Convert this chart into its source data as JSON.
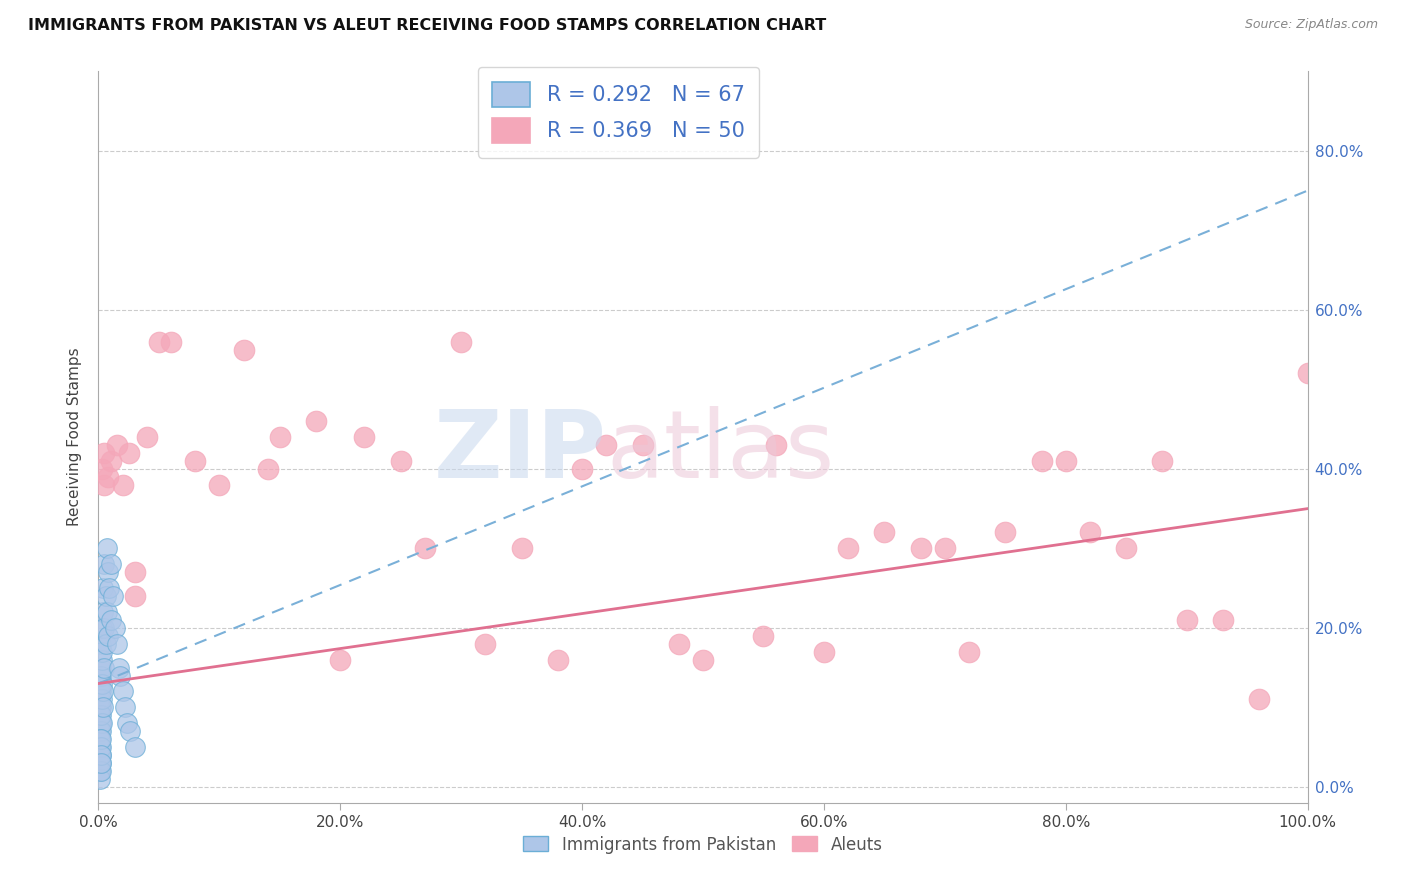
{
  "title": "IMMIGRANTS FROM PAKISTAN VS ALEUT RECEIVING FOOD STAMPS CORRELATION CHART",
  "source": "Source: ZipAtlas.com",
  "ylabel": "Receiving Food Stamps",
  "xlim": [
    0.0,
    1.0
  ],
  "ylim": [
    -0.02,
    0.9
  ],
  "xticks": [
    0.0,
    0.2,
    0.4,
    0.6,
    0.8,
    1.0
  ],
  "xticklabels": [
    "0.0%",
    "20.0%",
    "40.0%",
    "60.0%",
    "80.0%",
    "100.0%"
  ],
  "yticks": [
    0.0,
    0.2,
    0.4,
    0.6,
    0.8
  ],
  "yticklabels": [
    "0.0%",
    "20.0%",
    "40.0%",
    "60.0%",
    "80.0%"
  ],
  "legend_label1": "Immigrants from Pakistan",
  "legend_label2": "Aleuts",
  "color_pakistan_fill": "#aec6e8",
  "color_pakistan_edge": "#6baed6",
  "color_aleut_fill": "#f4a7b9",
  "color_aleut_edge": "#e07090",
  "color_pak_line": "#7ab0d8",
  "color_aleut_line": "#e07090",
  "background_color": "#ffffff",
  "pakistan_x": [
    0.001,
    0.001,
    0.001,
    0.001,
    0.001,
    0.001,
    0.001,
    0.001,
    0.001,
    0.001,
    0.002,
    0.002,
    0.002,
    0.002,
    0.002,
    0.002,
    0.002,
    0.002,
    0.003,
    0.003,
    0.003,
    0.003,
    0.003,
    0.003,
    0.004,
    0.004,
    0.004,
    0.004,
    0.005,
    0.005,
    0.005,
    0.006,
    0.006,
    0.007,
    0.007,
    0.008,
    0.008,
    0.009,
    0.01,
    0.01,
    0.012,
    0.014,
    0.015,
    0.017,
    0.018,
    0.02,
    0.022,
    0.024,
    0.026,
    0.03,
    0.001,
    0.001,
    0.001,
    0.001,
    0.001,
    0.001,
    0.001,
    0.001,
    0.001,
    0.001,
    0.002,
    0.002,
    0.002,
    0.002,
    0.002,
    0.002,
    0.002
  ],
  "pakistan_y": [
    0.1,
    0.12,
    0.08,
    0.14,
    0.09,
    0.07,
    0.11,
    0.06,
    0.13,
    0.05,
    0.15,
    0.1,
    0.12,
    0.08,
    0.14,
    0.07,
    0.18,
    0.09,
    0.16,
    0.11,
    0.2,
    0.08,
    0.13,
    0.17,
    0.22,
    0.12,
    0.25,
    0.1,
    0.28,
    0.15,
    0.2,
    0.24,
    0.18,
    0.3,
    0.22,
    0.27,
    0.19,
    0.25,
    0.28,
    0.21,
    0.24,
    0.2,
    0.18,
    0.15,
    0.14,
    0.12,
    0.1,
    0.08,
    0.07,
    0.05,
    0.04,
    0.03,
    0.02,
    0.05,
    0.06,
    0.04,
    0.03,
    0.02,
    0.01,
    0.03,
    0.04,
    0.05,
    0.03,
    0.02,
    0.06,
    0.04,
    0.03
  ],
  "aleut_x": [
    0.003,
    0.005,
    0.005,
    0.008,
    0.01,
    0.015,
    0.02,
    0.025,
    0.03,
    0.03,
    0.04,
    0.05,
    0.06,
    0.08,
    0.1,
    0.12,
    0.14,
    0.15,
    0.18,
    0.2,
    0.22,
    0.25,
    0.27,
    0.3,
    0.32,
    0.35,
    0.38,
    0.4,
    0.42,
    0.45,
    0.48,
    0.5,
    0.55,
    0.56,
    0.6,
    0.62,
    0.65,
    0.68,
    0.7,
    0.72,
    0.75,
    0.78,
    0.8,
    0.82,
    0.85,
    0.88,
    0.9,
    0.93,
    0.96,
    1.0
  ],
  "aleut_y": [
    0.4,
    0.38,
    0.42,
    0.39,
    0.41,
    0.43,
    0.38,
    0.42,
    0.27,
    0.24,
    0.44,
    0.56,
    0.56,
    0.41,
    0.38,
    0.55,
    0.4,
    0.44,
    0.46,
    0.16,
    0.44,
    0.41,
    0.3,
    0.56,
    0.18,
    0.3,
    0.16,
    0.4,
    0.43,
    0.43,
    0.18,
    0.16,
    0.19,
    0.43,
    0.17,
    0.3,
    0.32,
    0.3,
    0.3,
    0.17,
    0.32,
    0.41,
    0.41,
    0.32,
    0.3,
    0.41,
    0.21,
    0.21,
    0.11,
    0.52
  ]
}
